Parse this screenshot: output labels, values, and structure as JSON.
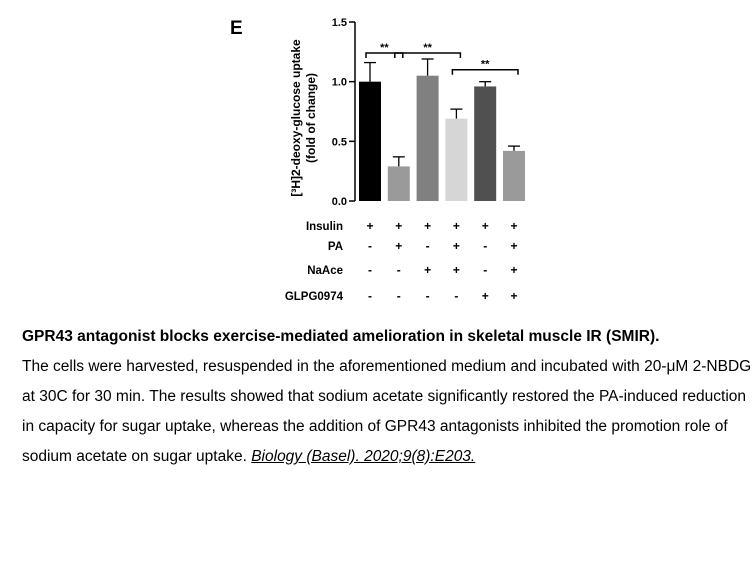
{
  "panel_label": "E",
  "chart_data": {
    "type": "bar",
    "ylabel_line1": "[³H]2-deoxy-glucose uptake",
    "ylabel_line2": "(fold of change)",
    "ylim": [
      0,
      1.5
    ],
    "yticks": [
      "0.0",
      "0.5",
      "1.0",
      "1.5"
    ],
    "ytick_values": [
      0,
      0.5,
      1.0,
      1.5
    ],
    "bars": [
      {
        "value": 1.0,
        "error": 0.16,
        "color": "#000000"
      },
      {
        "value": 0.29,
        "error": 0.08,
        "color": "#9a9a9a"
      },
      {
        "value": 1.05,
        "error": 0.14,
        "color": "#808080"
      },
      {
        "value": 0.69,
        "error": 0.08,
        "color": "#d6d6d6"
      },
      {
        "value": 0.96,
        "error": 0.04,
        "color": "#505050"
      },
      {
        "value": 0.42,
        "error": 0.04,
        "color": "#9a9a9a"
      }
    ],
    "significance": [
      {
        "from": 0,
        "to": 1,
        "y": 1.24,
        "label": "**"
      },
      {
        "from": 1,
        "to": 3,
        "y": 1.24,
        "label": "**"
      },
      {
        "from": 3,
        "to": 5,
        "y": 1.1,
        "label": "**"
      }
    ],
    "conditions": [
      {
        "label": "Insulin",
        "marks": [
          "+",
          "+",
          "+",
          "+",
          "+",
          "+"
        ]
      },
      {
        "label": "PA",
        "marks": [
          "-",
          "+",
          "-",
          "+",
          "-",
          "+"
        ]
      },
      {
        "label": "NaAce",
        "marks": [
          "-",
          "-",
          "+",
          "+",
          "-",
          "+"
        ]
      },
      {
        "label": "GLPG0974",
        "marks": [
          "-",
          "-",
          "-",
          "-",
          "+",
          "+"
        ]
      }
    ]
  },
  "caption": {
    "title": "GPR43 antagonist blocks exercise-mediated amelioration in skeletal muscle IR (SMIR).",
    "body": "The cells were harvested, resuspended in the aforementioned medium and incubated with 20-μM 2-NBDG at 30C for 30 min. The results showed that sodium acetate significantly restored the PA-induced reduction in capacity for sugar uptake, whereas the addition of GPR43 antagonists inhibited the promotion role of sodium acetate on sugar uptake.",
    "citation": "Biology (Basel). 2020;9(8):E203."
  }
}
